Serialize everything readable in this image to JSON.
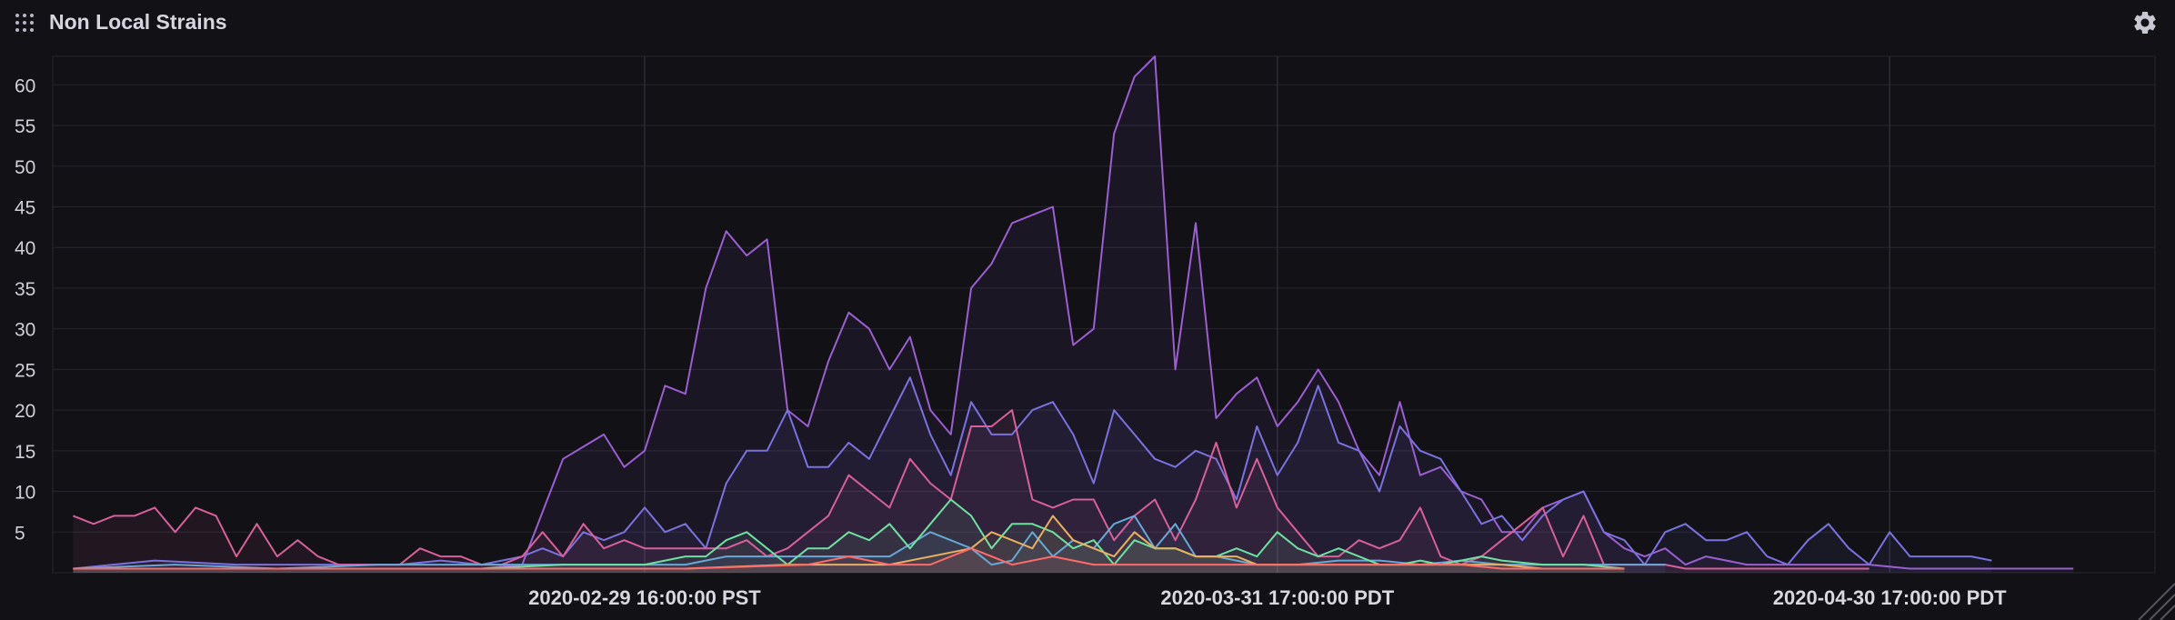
{
  "header": {
    "title": "Non Local Strains",
    "drag_icon": "drag-handle-icon",
    "settings_icon": "gear-icon"
  },
  "chart_data": {
    "type": "area",
    "title": "Non Local Strains",
    "xlabel": "",
    "ylabel": "",
    "x_tick_labels": [
      "2020-02-29 16:00:00 PST",
      "2020-03-31 17:00:00 PDT",
      "2020-04-30 17:00:00 PDT"
    ],
    "x_tick_positions": [
      28,
      59,
      89
    ],
    "x_range": [
      -1,
      102
    ],
    "ylim": [
      0,
      63.5
    ],
    "y_ticks": [
      5,
      10,
      15,
      20,
      25,
      30,
      35,
      40,
      45,
      50,
      55,
      60
    ],
    "y_tick_labels": [
      "5",
      "10",
      "15",
      "20",
      "25",
      "30",
      "35",
      "40",
      "45",
      "50",
      "55",
      "60"
    ],
    "grid": true,
    "series": [
      {
        "color": "#9a5fd0",
        "x": [
          0,
          8,
          16,
          20,
          22,
          24,
          26,
          27,
          28,
          29,
          30,
          31,
          32,
          33,
          34,
          35,
          36,
          37,
          38,
          39,
          40,
          41,
          42,
          43,
          44,
          45,
          46,
          47,
          48,
          49,
          50,
          51,
          52,
          53,
          54,
          55,
          56,
          57,
          58,
          59,
          60,
          61,
          62,
          63,
          64,
          65,
          66,
          67,
          68,
          69,
          70,
          71,
          72,
          73,
          74,
          75,
          76,
          77,
          78,
          79,
          80,
          82,
          84,
          86,
          88,
          90,
          92,
          94,
          96,
          98
        ],
        "values": [
          0.5,
          0.5,
          0.5,
          0.5,
          1,
          14,
          17,
          13,
          15,
          23,
          22,
          35,
          42,
          39,
          41,
          20,
          18,
          26,
          32,
          30,
          25,
          29,
          20,
          17,
          35,
          38,
          43,
          44,
          45,
          28,
          30,
          54,
          61,
          63.5,
          25,
          43,
          19,
          22,
          24,
          18,
          21,
          25,
          21,
          15,
          12,
          21,
          12,
          13,
          10,
          9,
          5,
          5,
          8,
          9,
          10,
          5,
          3,
          2,
          3,
          1,
          2,
          1,
          1,
          1,
          1,
          0.5,
          0.5,
          0.5,
          0.5,
          0.5
        ]
      },
      {
        "color": "#7a72df",
        "x": [
          0,
          4,
          8,
          12,
          16,
          18,
          20,
          22,
          23,
          24,
          25,
          26,
          27,
          28,
          29,
          30,
          31,
          32,
          33,
          34,
          35,
          36,
          37,
          38,
          39,
          40,
          41,
          42,
          43,
          44,
          45,
          46,
          47,
          48,
          49,
          50,
          51,
          52,
          53,
          54,
          55,
          56,
          57,
          58,
          59,
          60,
          61,
          62,
          63,
          64,
          65,
          66,
          67,
          68,
          69,
          70,
          71,
          72,
          73,
          74,
          75,
          76,
          77,
          78,
          79,
          80,
          81,
          82,
          83,
          84,
          85,
          86,
          87,
          88,
          89,
          90,
          91,
          92,
          93,
          94
        ],
        "values": [
          0.5,
          1.5,
          1,
          1,
          1,
          1.5,
          1,
          2,
          3,
          2,
          5,
          4,
          5,
          8,
          5,
          6,
          3,
          11,
          15,
          15,
          20,
          13,
          13,
          16,
          14,
          19,
          24,
          17,
          12,
          21,
          17,
          17,
          20,
          21,
          17,
          11,
          20,
          17,
          14,
          13,
          15,
          14,
          9,
          18,
          12,
          16,
          23,
          16,
          15,
          10,
          18,
          15,
          14,
          10,
          6,
          7,
          4,
          7,
          9,
          10,
          5,
          4,
          1,
          5,
          6,
          4,
          4,
          5,
          2,
          1,
          4,
          6,
          3,
          1,
          5,
          2,
          2,
          2,
          2,
          1.5
        ]
      },
      {
        "color": "#d8609a",
        "x": [
          0,
          1,
          2,
          3,
          4,
          5,
          6,
          7,
          8,
          9,
          10,
          11,
          12,
          13,
          14,
          15,
          16,
          17,
          18,
          19,
          20,
          21,
          22,
          23,
          24,
          25,
          26,
          27,
          28,
          29,
          30,
          31,
          32,
          33,
          34,
          35,
          36,
          37,
          38,
          39,
          40,
          41,
          42,
          43,
          44,
          45,
          46,
          47,
          48,
          49,
          50,
          51,
          52,
          53,
          54,
          55,
          56,
          57,
          58,
          59,
          60,
          61,
          62,
          63,
          64,
          65,
          66,
          67,
          68,
          69,
          70,
          71,
          72,
          73,
          74,
          75,
          76,
          77,
          78,
          79,
          80,
          81,
          82,
          83,
          84,
          85,
          86,
          87,
          88
        ],
        "values": [
          7,
          6,
          7,
          7,
          8,
          5,
          8,
          7,
          2,
          6,
          2,
          4,
          2,
          1,
          1,
          1,
          1,
          3,
          2,
          2,
          1,
          1,
          2,
          5,
          2,
          6,
          3,
          4,
          3,
          3,
          3,
          3,
          3,
          4,
          2,
          3,
          5,
          7,
          12,
          10,
          8,
          14,
          11,
          9,
          18,
          18,
          20,
          9,
          8,
          9,
          9,
          4,
          7,
          9,
          4,
          9,
          16,
          8,
          14,
          8,
          5,
          2,
          2,
          4,
          3,
          4,
          8,
          2,
          1,
          2,
          4,
          6,
          8,
          2,
          7,
          1,
          1,
          1,
          1,
          0.5,
          0.5,
          0.5,
          0.5,
          0.5,
          0.5,
          0.5,
          0.5,
          0.5,
          0.5
        ]
      },
      {
        "color": "#66a8d6",
        "x": [
          0,
          5,
          10,
          15,
          20,
          24,
          26,
          28,
          30,
          32,
          34,
          36,
          38,
          40,
          42,
          44,
          45,
          46,
          47,
          48,
          49,
          50,
          51,
          52,
          53,
          54,
          55,
          56,
          58,
          60,
          62,
          64,
          66,
          68,
          70,
          72,
          74,
          76,
          78
        ],
        "values": [
          0.5,
          1,
          0.5,
          1,
          1,
          1,
          1,
          1,
          1,
          2,
          2,
          2,
          2,
          2,
          5,
          3,
          1,
          1.5,
          5,
          2,
          4,
          3,
          6,
          7,
          3,
          6,
          2,
          2,
          1,
          1,
          1.5,
          1.5,
          1,
          1.5,
          1,
          1,
          1,
          1,
          1
        ]
      },
      {
        "color": "#6ee0a0",
        "x": [
          0,
          5,
          10,
          15,
          20,
          24,
          26,
          28,
          30,
          31,
          32,
          33,
          34,
          35,
          36,
          37,
          38,
          39,
          40,
          41,
          42,
          43,
          44,
          45,
          46,
          47,
          48,
          49,
          50,
          51,
          52,
          53,
          54,
          55,
          56,
          57,
          58,
          59,
          60,
          61,
          62,
          63,
          64,
          65,
          66,
          67,
          68,
          69,
          70,
          72,
          74,
          76
        ],
        "values": [
          0.5,
          0.5,
          0.5,
          0.5,
          0.5,
          1,
          1,
          1,
          2,
          2,
          4,
          5,
          3,
          1,
          3,
          3,
          5,
          4,
          6,
          3,
          6,
          9,
          7,
          3,
          6,
          6,
          5,
          3,
          4,
          1,
          4,
          3,
          3,
          2,
          2,
          3,
          2,
          5,
          3,
          2,
          3,
          2,
          1,
          1,
          1.5,
          1,
          1.5,
          2,
          1.5,
          1,
          1,
          0.5
        ]
      },
      {
        "color": "#e8b060",
        "x": [
          0,
          10,
          20,
          30,
          35,
          40,
          44,
          45,
          46,
          47,
          48,
          49,
          50,
          51,
          52,
          53,
          54,
          55,
          56,
          57,
          58,
          60,
          62,
          64,
          66,
          68,
          70,
          72,
          74,
          76
        ],
        "values": [
          0.5,
          0.5,
          0.5,
          0.5,
          1,
          1,
          3,
          5,
          4,
          3,
          7,
          4,
          3,
          2,
          5,
          3,
          3,
          2,
          2,
          2,
          1,
          1,
          1,
          1,
          1,
          1,
          1,
          0.5,
          0.5,
          0.5
        ]
      },
      {
        "color": "#ff6a6a",
        "x": [
          0,
          10,
          20,
          30,
          36,
          38,
          40,
          42,
          44,
          45,
          46,
          48,
          50,
          52,
          54,
          56,
          58,
          60,
          62,
          64,
          66,
          68,
          70,
          72,
          74,
          76
        ],
        "values": [
          0.5,
          0.5,
          0.5,
          0.5,
          1,
          2,
          1,
          1,
          3,
          2,
          1,
          2,
          1,
          1,
          1,
          1,
          1,
          1,
          1,
          1,
          1,
          1,
          0.5,
          0.5,
          0.5,
          0.5
        ]
      }
    ]
  }
}
